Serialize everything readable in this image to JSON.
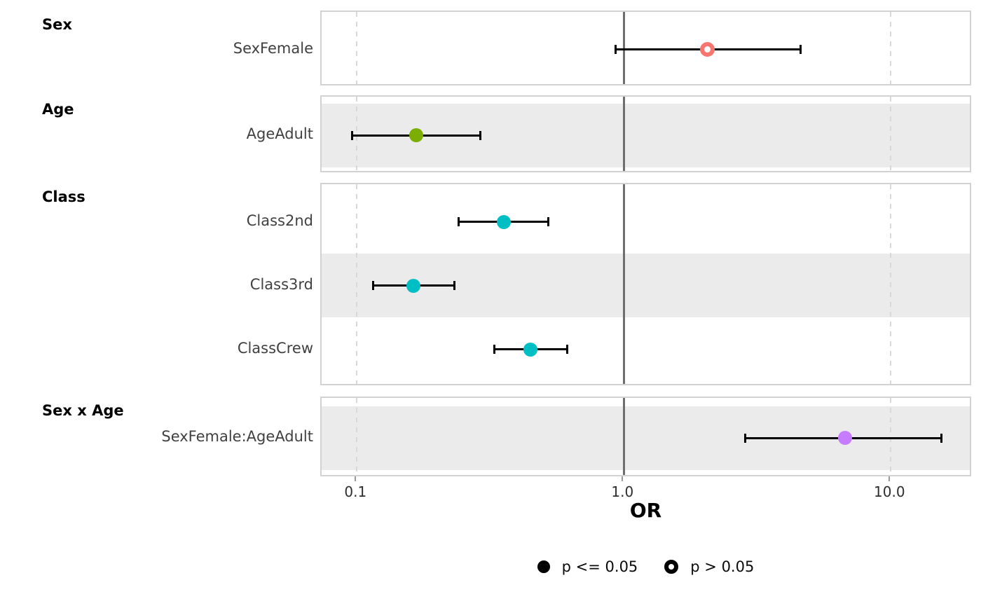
{
  "chart_data": {
    "type": "forest-dot-whisker",
    "title": "",
    "xlabel": "OR",
    "x_scale": "log10",
    "x_range": [
      0.074,
      20
    ],
    "x_ticks": [
      {
        "label": "0.1",
        "value": 0.1
      },
      {
        "label": "1.0",
        "value": 1.0
      },
      {
        "label": "10.0",
        "value": 10.0
      }
    ],
    "reference_line": 1.0,
    "dashed_gridlines": [
      0.1,
      10.0
    ],
    "legend": [
      {
        "label": "p <= 0.05",
        "marker": "filled"
      },
      {
        "label": "p > 0.05",
        "marker": "open"
      }
    ],
    "groups": [
      {
        "label": "Sex",
        "terms": [
          {
            "name": "SexFemale",
            "or": 2.05,
            "ci_low": 0.93,
            "ci_high": 4.6,
            "significant": false,
            "color": "#F8766D",
            "striped": false
          }
        ]
      },
      {
        "label": "Age",
        "terms": [
          {
            "name": "AgeAdult",
            "or": 0.167,
            "ci_low": 0.096,
            "ci_high": 0.29,
            "significant": true,
            "color": "#7CAE00",
            "striped": true
          }
        ]
      },
      {
        "label": "Class",
        "terms": [
          {
            "name": "Class2nd",
            "or": 0.355,
            "ci_low": 0.24,
            "ci_high": 0.52,
            "significant": true,
            "color": "#00BFC4",
            "striped": false
          },
          {
            "name": "Class3rd",
            "or": 0.163,
            "ci_low": 0.115,
            "ci_high": 0.232,
            "significant": true,
            "color": "#00BFC4",
            "striped": true
          },
          {
            "name": "ClassCrew",
            "or": 0.447,
            "ci_low": 0.327,
            "ci_high": 0.614,
            "significant": true,
            "color": "#00BFC4",
            "striped": false
          }
        ]
      },
      {
        "label": "Sex x Age",
        "terms": [
          {
            "name": "SexFemale:AgeAdult",
            "or": 6.75,
            "ci_low": 2.85,
            "ci_high": 15.5,
            "significant": true,
            "color": "#C77CFF",
            "striped": true
          }
        ]
      }
    ],
    "colors": {
      "stripe": "#ebebeb",
      "reference_line": "#6e6e6e",
      "gridline": "#d8d8d8",
      "panel_border": "#d2d2d2",
      "errorbar": "#000000",
      "term_label": "#404040",
      "tick_label": "#2e2e2e"
    }
  }
}
